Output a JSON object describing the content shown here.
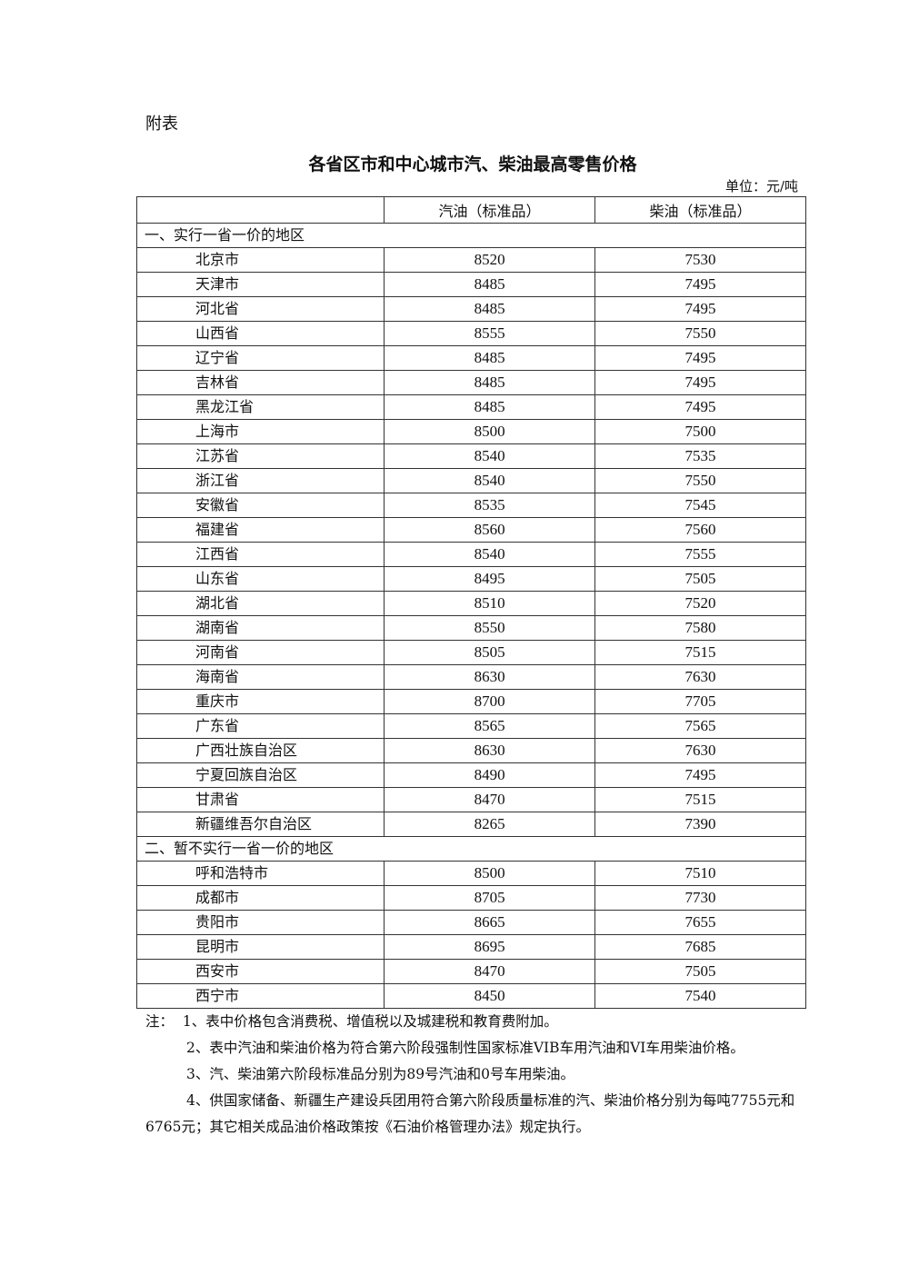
{
  "attachment_label": "附表",
  "title": "各省区市和中心城市汽、柴油最高零售价格",
  "unit": "单位：元/吨",
  "table": {
    "headers": [
      "",
      "汽油（标准品）",
      "柴油（标准品）"
    ],
    "sections": [
      {
        "label": "一、实行一省一价的地区",
        "rows": [
          [
            "北京市",
            "8520",
            "7530"
          ],
          [
            "天津市",
            "8485",
            "7495"
          ],
          [
            "河北省",
            "8485",
            "7495"
          ],
          [
            "山西省",
            "8555",
            "7550"
          ],
          [
            "辽宁省",
            "8485",
            "7495"
          ],
          [
            "吉林省",
            "8485",
            "7495"
          ],
          [
            "黑龙江省",
            "8485",
            "7495"
          ],
          [
            "上海市",
            "8500",
            "7500"
          ],
          [
            "江苏省",
            "8540",
            "7535"
          ],
          [
            "浙江省",
            "8540",
            "7550"
          ],
          [
            "安徽省",
            "8535",
            "7545"
          ],
          [
            "福建省",
            "8560",
            "7560"
          ],
          [
            "江西省",
            "8540",
            "7555"
          ],
          [
            "山东省",
            "8495",
            "7505"
          ],
          [
            "湖北省",
            "8510",
            "7520"
          ],
          [
            "湖南省",
            "8550",
            "7580"
          ],
          [
            "河南省",
            "8505",
            "7515"
          ],
          [
            "海南省",
            "8630",
            "7630"
          ],
          [
            "重庆市",
            "8700",
            "7705"
          ],
          [
            "广东省",
            "8565",
            "7565"
          ],
          [
            "广西壮族自治区",
            "8630",
            "7630"
          ],
          [
            "宁夏回族自治区",
            "8490",
            "7495"
          ],
          [
            "甘肃省",
            "8470",
            "7515"
          ],
          [
            "新疆维吾尔自治区",
            "8265",
            "7390"
          ]
        ]
      },
      {
        "label": "二、暂不实行一省一价的地区",
        "rows": [
          [
            "呼和浩特市",
            "8500",
            "7510"
          ],
          [
            "成都市",
            "8705",
            "7730"
          ],
          [
            "贵阳市",
            "8665",
            "7655"
          ],
          [
            "昆明市",
            "8695",
            "7685"
          ],
          [
            "西安市",
            "8470",
            "7505"
          ],
          [
            "西宁市",
            "8450",
            "7540"
          ]
        ]
      }
    ]
  },
  "notes": {
    "prefix": "注：",
    "items": [
      "1、表中价格包含消费税、增值税以及城建税和教育费附加。",
      "2、表中汽油和柴油价格为符合第六阶段强制性国家标准VIB车用汽油和VI车用柴油价格。",
      "3、汽、柴油第六阶段标准品分别为89号汽油和0号车用柴油。",
      "4、供国家储备、新疆生产建设兵团用符合第六阶段质量标准的汽、柴油价格分别为每吨7755元和6765元；其它相关成品油价格政策按《石油价格管理办法》规定执行。"
    ]
  }
}
